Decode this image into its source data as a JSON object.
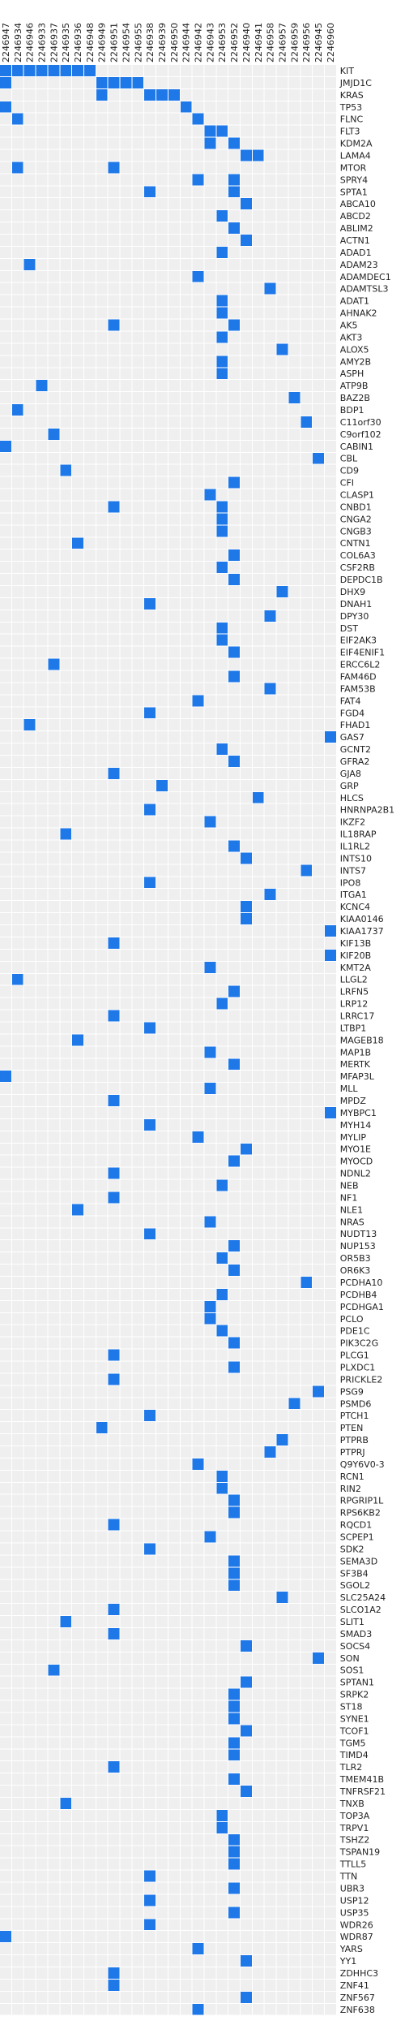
{
  "colors": {
    "mutation": "#1f78e8",
    "background_cell": "#efefef",
    "grid_line": "#ffffff"
  },
  "chart_data": {
    "type": "heatmap",
    "title": "",
    "xlabel": "",
    "ylabel": "",
    "columns": [
      "2246947",
      "2246934",
      "2246946",
      "2246933",
      "2246937",
      "2246935",
      "2246936",
      "2246948",
      "2246949",
      "2246951",
      "2246954",
      "2246955",
      "2246938",
      "2246939",
      "2246950",
      "2246944",
      "2246942",
      "2246943",
      "2246953",
      "2246952",
      "2246940",
      "2246941",
      "2246958",
      "2246957",
      "2246959",
      "2246956",
      "2246945",
      "2246960"
    ],
    "rows": [
      "KIT",
      "JMJD1C",
      "KRAS",
      "TP53",
      "FLNC",
      "FLT3",
      "KDM2A",
      "LAMA4",
      "MTOR",
      "SPRY4",
      "SPTA1",
      "ABCA10",
      "ABCD2",
      "ABLIM2",
      "ACTN1",
      "ADAD1",
      "ADAM23",
      "ADAMDEC1",
      "ADAMTSL3",
      "ADAT1",
      "AHNAK2",
      "AK5",
      "AKT3",
      "ALOX5",
      "AMY2B",
      "ASPH",
      "ATP9B",
      "BAZ2B",
      "BDP1",
      "C11orf30",
      "C9orf102",
      "CABIN1",
      "CBL",
      "CD9",
      "CFI",
      "CLASP1",
      "CNBD1",
      "CNGA2",
      "CNGB3",
      "CNTN1",
      "COL6A3",
      "CSF2RB",
      "DEPDC1B",
      "DHX9",
      "DNAH1",
      "DPY30",
      "DST",
      "EIF2AK3",
      "EIF4ENIF1",
      "ERCC6L2",
      "FAM46D",
      "FAM53B",
      "FAT4",
      "FGD4",
      "FHAD1",
      "GAS7",
      "GCNT2",
      "GFRA2",
      "GJA8",
      "GRP",
      "HLCS",
      "HNRNPA2B1",
      "IKZF2",
      "IL18RAP",
      "IL1RL2",
      "INTS10",
      "INTS7",
      "IPO8",
      "ITGA1",
      "KCNC4",
      "KIAA0146",
      "KIAA1737",
      "KIF13B",
      "KIF20B",
      "KMT2A",
      "LLGL2",
      "LRFN5",
      "LRP12",
      "LRRC17",
      "LTBP1",
      "MAGEB18",
      "MAP1B",
      "MERTK",
      "MFAP3L",
      "MLL",
      "MPDZ",
      "MYBPC1",
      "MYH14",
      "MYLIP",
      "MYO1E",
      "MYOCD",
      "NDNL2",
      "NEB",
      "NF1",
      "NLE1",
      "NRAS",
      "NUDT13",
      "NUP153",
      "OR5B3",
      "OR6K3",
      "PCDHA10",
      "PCDHB4",
      "PCDHGA1",
      "PCLO",
      "PDE1C",
      "PIK3C2G",
      "PLCG1",
      "PLXDC1",
      "PRICKLE2",
      "PSG9",
      "PSMD6",
      "PTCH1",
      "PTEN",
      "PTPRB",
      "PTPRJ",
      "Q9Y6V0-3",
      "RCN1",
      "RIN2",
      "RPGRIP1L",
      "RPS6KB2",
      "RQCD1",
      "SCPEP1",
      "SDK2",
      "SEMA3D",
      "SF3B4",
      "SGOL2",
      "SLC25A24",
      "SLCO1A2",
      "SLIT1",
      "SMAD3",
      "SOCS4",
      "SON",
      "SOS1",
      "SPTAN1",
      "SRPK2",
      "ST18",
      "SYNE1",
      "TCOF1",
      "TGM5",
      "TIMD4",
      "TLR2",
      "TMEM41B",
      "TNFRSF21",
      "TNXB",
      "TOP3A",
      "TRPV1",
      "TSHZ2",
      "TSPAN19",
      "TTLL5",
      "TTN",
      "UBR3",
      "USP12",
      "USP35",
      "WDR26",
      "WDR87",
      "YARS",
      "YY1",
      "ZDHHC3",
      "ZNF41",
      "ZNF567",
      "ZNF638"
    ],
    "mutated_cells": [
      [
        0,
        0
      ],
      [
        0,
        1
      ],
      [
        0,
        2
      ],
      [
        0,
        3
      ],
      [
        0,
        4
      ],
      [
        0,
        5
      ],
      [
        0,
        6
      ],
      [
        0,
        7
      ],
      [
        1,
        0
      ],
      [
        1,
        8
      ],
      [
        1,
        9
      ],
      [
        1,
        10
      ],
      [
        1,
        11
      ],
      [
        2,
        8
      ],
      [
        2,
        12
      ],
      [
        2,
        13
      ],
      [
        2,
        14
      ],
      [
        3,
        0
      ],
      [
        3,
        15
      ],
      [
        4,
        1
      ],
      [
        4,
        16
      ],
      [
        5,
        17
      ],
      [
        5,
        18
      ],
      [
        6,
        17
      ],
      [
        6,
        19
      ],
      [
        7,
        20
      ],
      [
        7,
        21
      ],
      [
        8,
        1
      ],
      [
        8,
        9
      ],
      [
        9,
        16
      ],
      [
        9,
        19
      ],
      [
        10,
        12
      ],
      [
        10,
        19
      ],
      [
        11,
        20
      ],
      [
        12,
        18
      ],
      [
        13,
        19
      ],
      [
        14,
        20
      ],
      [
        15,
        18
      ],
      [
        16,
        2
      ],
      [
        17,
        16
      ],
      [
        18,
        22
      ],
      [
        19,
        18
      ],
      [
        20,
        18
      ],
      [
        21,
        9
      ],
      [
        21,
        19
      ],
      [
        22,
        18
      ],
      [
        23,
        23
      ],
      [
        24,
        18
      ],
      [
        25,
        18
      ],
      [
        26,
        3
      ],
      [
        27,
        24
      ],
      [
        28,
        1
      ],
      [
        29,
        25
      ],
      [
        30,
        4
      ],
      [
        31,
        0
      ],
      [
        32,
        26
      ],
      [
        33,
        5
      ],
      [
        34,
        19
      ],
      [
        35,
        17
      ],
      [
        36,
        9
      ],
      [
        36,
        18
      ],
      [
        37,
        18
      ],
      [
        38,
        18
      ],
      [
        39,
        6
      ],
      [
        40,
        19
      ],
      [
        41,
        18
      ],
      [
        42,
        19
      ],
      [
        43,
        23
      ],
      [
        44,
        12
      ],
      [
        45,
        22
      ],
      [
        46,
        18
      ],
      [
        47,
        18
      ],
      [
        48,
        19
      ],
      [
        49,
        4
      ],
      [
        50,
        19
      ],
      [
        51,
        22
      ],
      [
        52,
        16
      ],
      [
        53,
        12
      ],
      [
        54,
        2
      ],
      [
        55,
        27
      ],
      [
        56,
        18
      ],
      [
        57,
        19
      ],
      [
        58,
        9
      ],
      [
        59,
        13
      ],
      [
        60,
        21
      ],
      [
        61,
        12
      ],
      [
        62,
        17
      ],
      [
        63,
        5
      ],
      [
        64,
        19
      ],
      [
        65,
        20
      ],
      [
        66,
        25
      ],
      [
        67,
        12
      ],
      [
        68,
        22
      ],
      [
        69,
        20
      ],
      [
        70,
        20
      ],
      [
        71,
        27
      ],
      [
        72,
        9
      ],
      [
        73,
        27
      ],
      [
        74,
        17
      ],
      [
        75,
        1
      ],
      [
        76,
        19
      ],
      [
        77,
        18
      ],
      [
        78,
        9
      ],
      [
        79,
        12
      ],
      [
        80,
        6
      ],
      [
        81,
        17
      ],
      [
        82,
        19
      ],
      [
        83,
        0
      ],
      [
        84,
        17
      ],
      [
        85,
        9
      ],
      [
        86,
        27
      ],
      [
        87,
        12
      ],
      [
        88,
        16
      ],
      [
        89,
        20
      ],
      [
        90,
        19
      ],
      [
        91,
        9
      ],
      [
        92,
        18
      ],
      [
        93,
        9
      ],
      [
        94,
        6
      ],
      [
        95,
        17
      ],
      [
        96,
        12
      ],
      [
        97,
        19
      ],
      [
        98,
        18
      ],
      [
        99,
        19
      ],
      [
        100,
        25
      ],
      [
        101,
        18
      ],
      [
        102,
        17
      ],
      [
        103,
        17
      ],
      [
        104,
        18
      ],
      [
        105,
        19
      ],
      [
        106,
        9
      ],
      [
        107,
        19
      ],
      [
        108,
        9
      ],
      [
        109,
        26
      ],
      [
        110,
        24
      ],
      [
        111,
        12
      ],
      [
        112,
        8
      ],
      [
        113,
        23
      ],
      [
        114,
        22
      ],
      [
        115,
        16
      ],
      [
        116,
        18
      ],
      [
        117,
        18
      ],
      [
        118,
        19
      ],
      [
        119,
        19
      ],
      [
        120,
        9
      ],
      [
        121,
        17
      ],
      [
        122,
        12
      ],
      [
        123,
        19
      ],
      [
        124,
        19
      ],
      [
        125,
        19
      ],
      [
        126,
        23
      ],
      [
        127,
        9
      ],
      [
        128,
        5
      ],
      [
        129,
        9
      ],
      [
        130,
        20
      ],
      [
        131,
        26
      ],
      [
        132,
        4
      ],
      [
        133,
        20
      ],
      [
        134,
        19
      ],
      [
        135,
        19
      ],
      [
        136,
        19
      ],
      [
        137,
        20
      ],
      [
        138,
        19
      ],
      [
        139,
        19
      ],
      [
        140,
        9
      ],
      [
        141,
        19
      ],
      [
        142,
        20
      ],
      [
        143,
        5
      ],
      [
        144,
        18
      ],
      [
        145,
        18
      ],
      [
        146,
        19
      ],
      [
        147,
        19
      ],
      [
        148,
        19
      ],
      [
        149,
        12
      ],
      [
        150,
        19
      ],
      [
        151,
        12
      ],
      [
        152,
        19
      ],
      [
        153,
        12
      ],
      [
        154,
        0
      ],
      [
        155,
        16
      ],
      [
        156,
        20
      ],
      [
        157,
        9
      ],
      [
        158,
        9
      ],
      [
        159,
        20
      ],
      [
        160,
        16
      ],
      [
        161,
        9
      ]
    ]
  }
}
